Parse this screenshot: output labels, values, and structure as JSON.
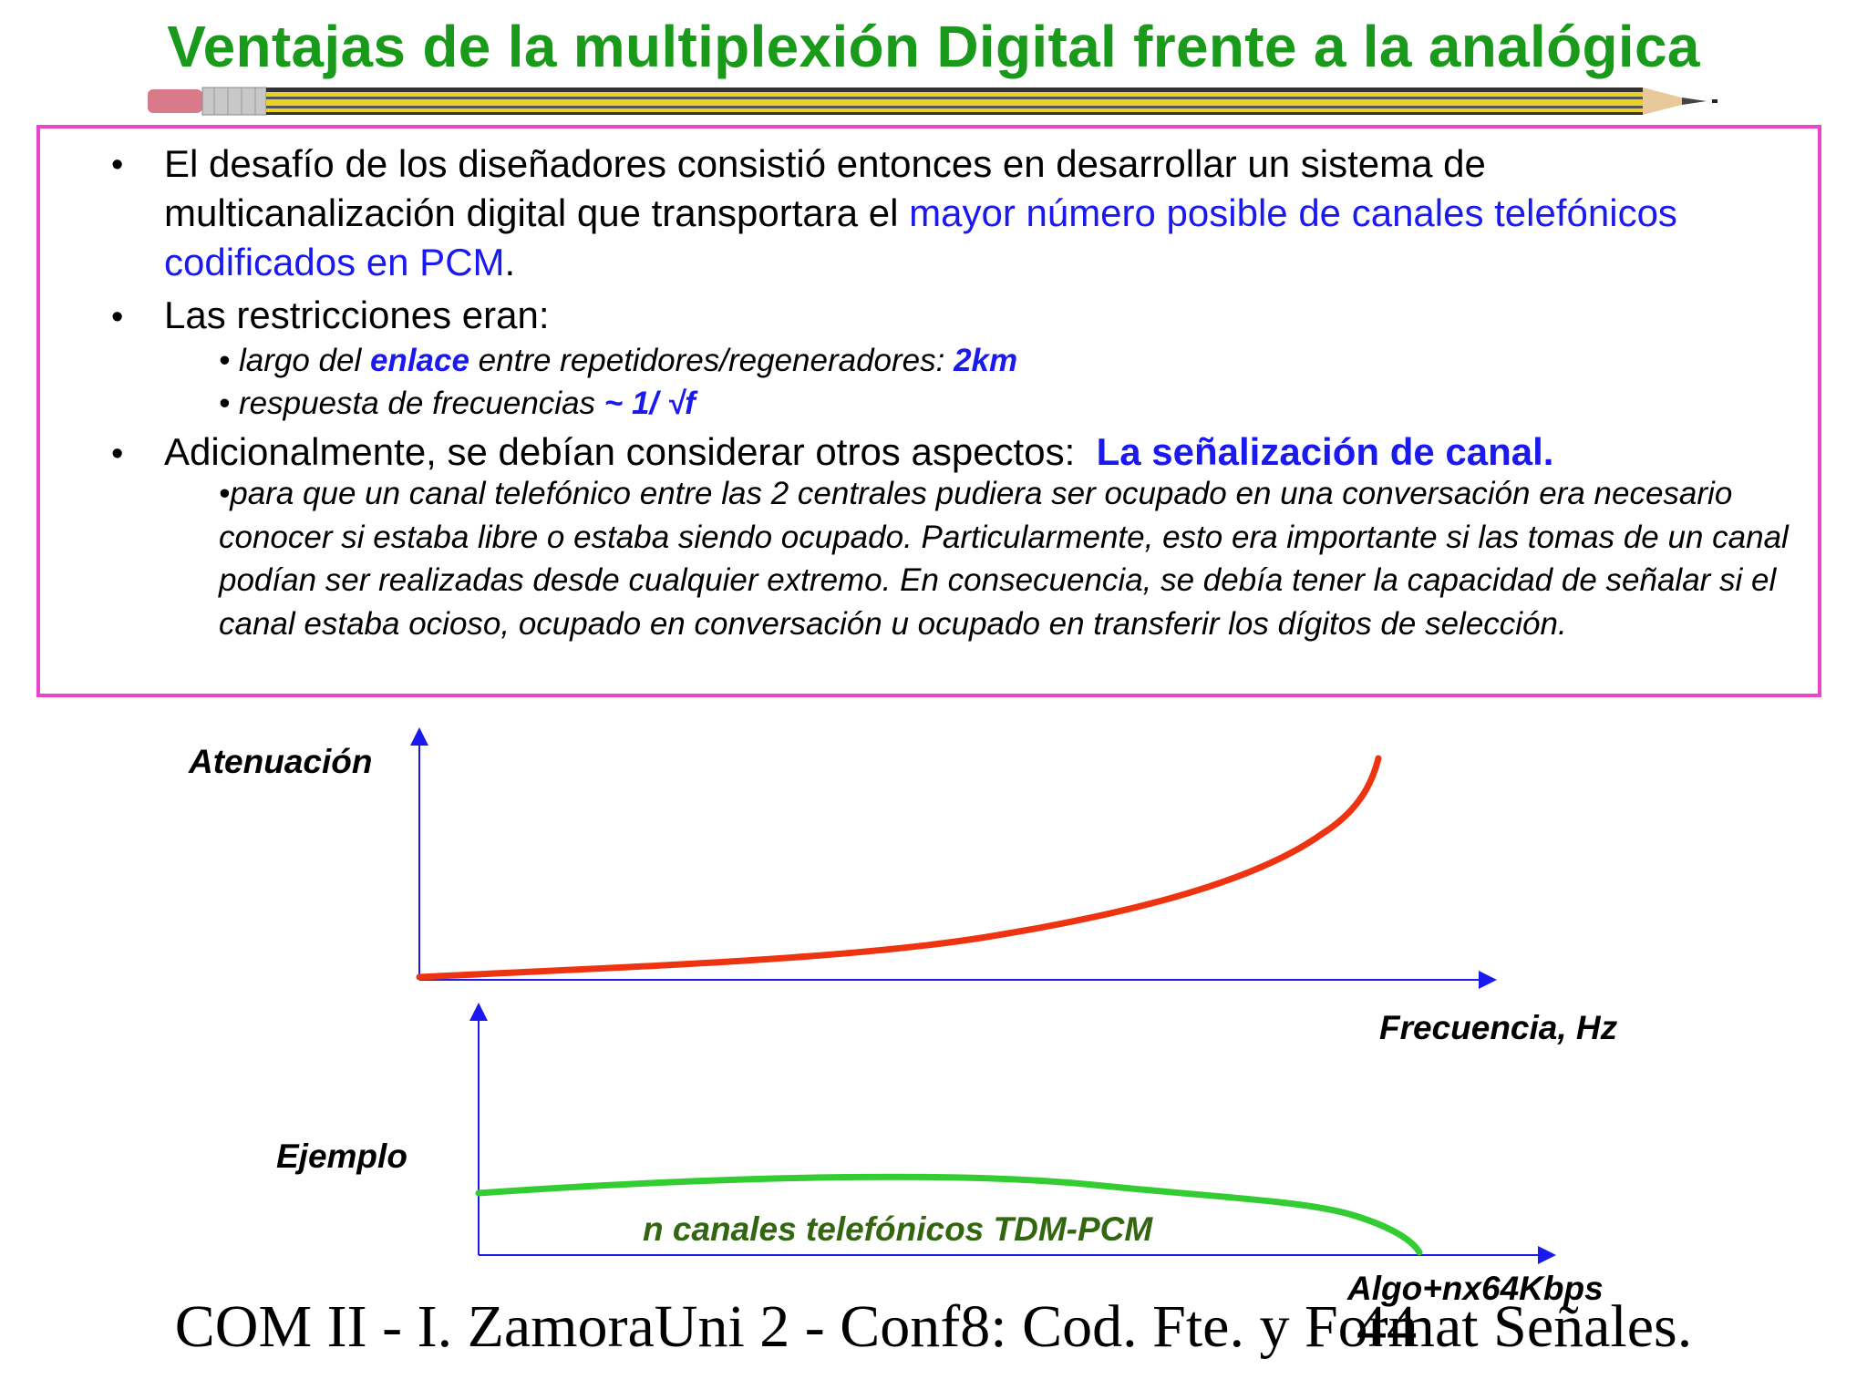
{
  "title": "Ventajas de la multiplexión Digital frente a la analógica",
  "bullets": {
    "b1_line1": "El desafío de los diseñadores consistió entonces en desarrollar un sistema de",
    "b1_line2_black": "multicanalización digital que transportara el ",
    "b1_line2_blue": "mayor número posible de canales telefónicos",
    "b1_line3_blue": "codificados en PCM",
    "b1_line3_end": ".",
    "b2": "Las restricciones eran:",
    "s1_pre": "• largo del ",
    "s1_bold": "enlace",
    "s1_mid": " entre repetidores/regeneradores: ",
    "s1_val": "2km",
    "s2_pre": "• respuesta de frecuencias ",
    "s2_val": "~ 1/ √f",
    "b3_black": "Adicionalmente, se debían considerar otros aspectos:  ",
    "b3_blue": "La señalización de canal.",
    "para": "•para que un canal telefónico entre las 2 centrales pudiera ser ocupado en una conversación era necesario conocer si estaba libre o estaba siendo ocupado. Particularmente, esto era importante si las tomas de un canal podían ser realizadas desde cualquier extremo. En consecuencia, se debía tener la capacidad de señalar si el canal estaba ocioso, ocupado en conversación u ocupado en transferir los dígitos de selección."
  },
  "diagram": {
    "top_ylabel": "Atenuación",
    "top_xlabel": "Frecuencia, Hz",
    "bottom_ylabel": "Ejemplo",
    "bottom_curve_label": "n canales telefónicos TDM-PCM",
    "bottom_xlabel": "Algo+nx64Kbps",
    "colors": {
      "axes": "#1a1aee",
      "attenuation_curve": "#ee3311",
      "channel_curve": "#33cc33",
      "label_green": "#336611"
    }
  },
  "footer": {
    "text": "COM II - I. ZamoraUni 2 - Conf8: Cod. Fte. y Format Señales.",
    "slide_number": "44"
  }
}
